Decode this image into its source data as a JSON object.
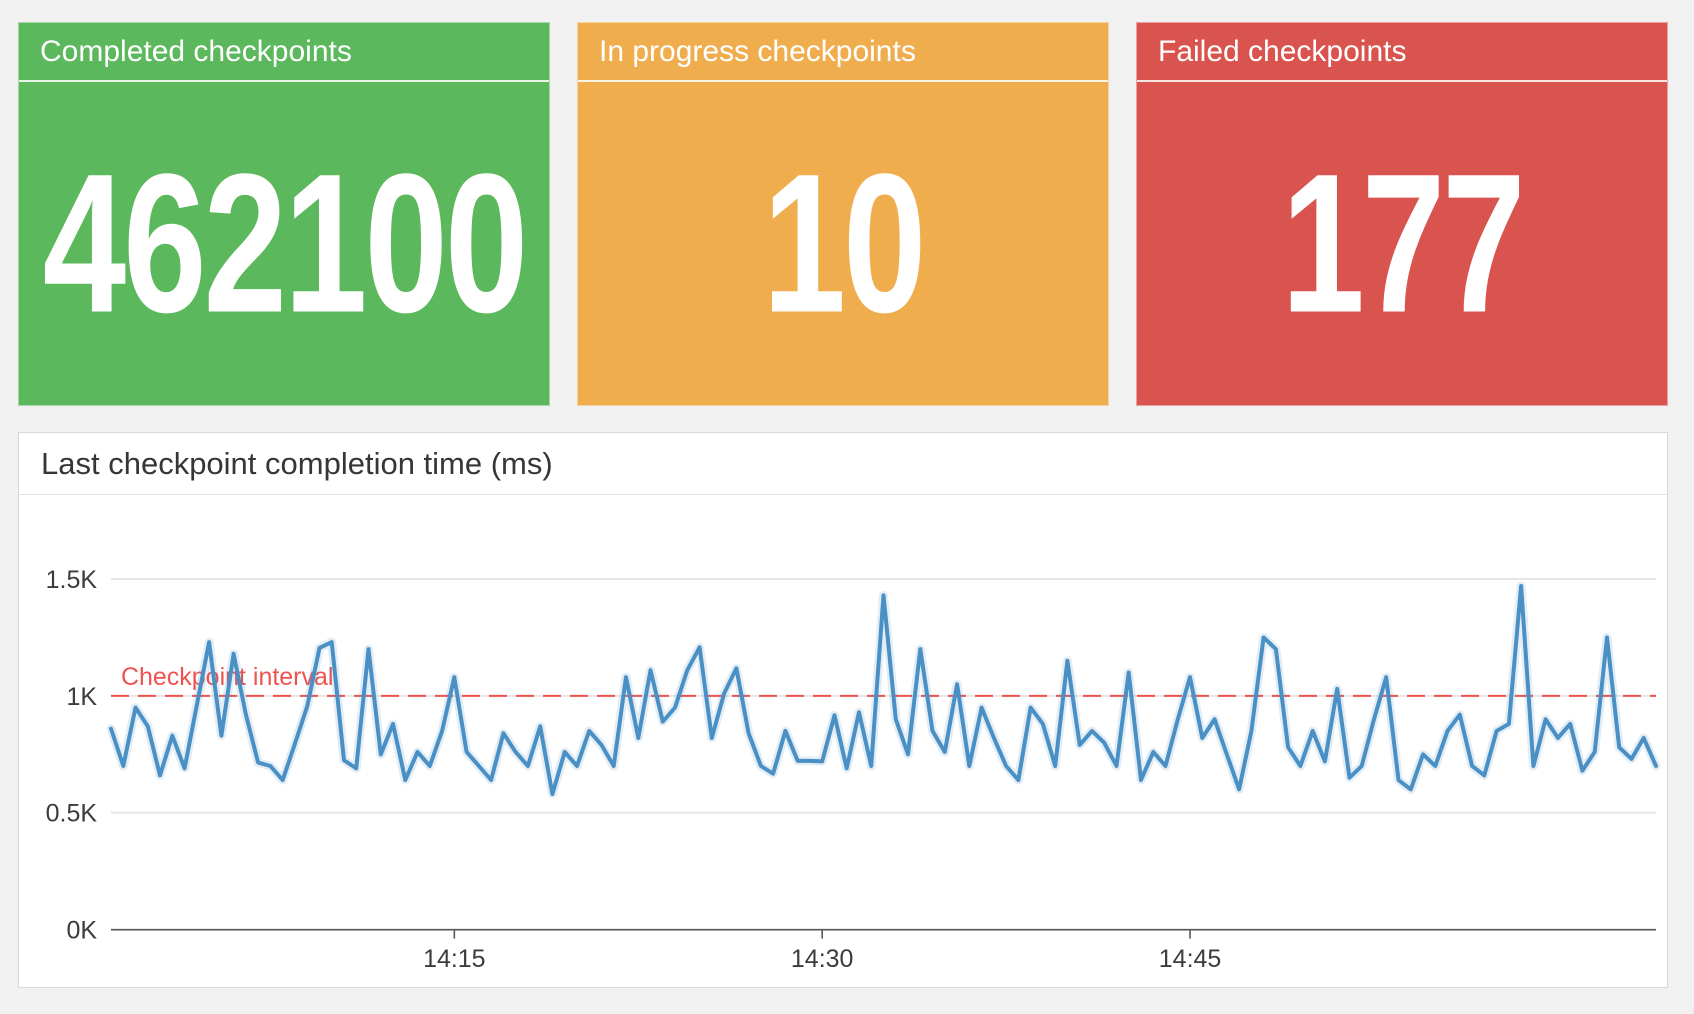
{
  "stats": [
    {
      "title": "Completed checkpoints",
      "value": "462100",
      "color": "#5cb85c"
    },
    {
      "title": "In progress checkpoints",
      "value": "10",
      "color": "#f0ad4e"
    },
    {
      "title": "Failed checkpoints",
      "value": "177",
      "color": "#d9534f"
    }
  ],
  "chart": {
    "title": "Last checkpoint completion time (ms)"
  },
  "chart_data": {
    "type": "line",
    "title": "Last checkpoint completion time (ms)",
    "xlabel": "",
    "ylabel": "",
    "ylim": [
      0,
      1792
    ],
    "grid": true,
    "legend": false,
    "x_start": "14:01:00",
    "x_interval_seconds": 30,
    "x_ticks": [
      {
        "label": "14:15",
        "index": 28
      },
      {
        "label": "14:30",
        "index": 58
      },
      {
        "label": "14:45",
        "index": 88
      }
    ],
    "y_ticks": [
      {
        "label": "0K",
        "value": 0
      },
      {
        "label": "0.5K",
        "value": 500
      },
      {
        "label": "1K",
        "value": 1000
      },
      {
        "label": "1.5K",
        "value": 1500
      }
    ],
    "threshold": {
      "label": "Checkpoint interval",
      "value": 1000,
      "color": "#ee534f",
      "style": "dashed"
    },
    "series": [
      {
        "name": "Last checkpoint completion time (ms)",
        "color": "#4a90c4",
        "values": [
          860,
          700,
          950,
          870,
          660,
          830,
          690,
          960,
          1230,
          830,
          1180,
          920,
          715,
          700,
          640,
          795,
          955,
          1205,
          1230,
          725,
          690,
          1200,
          750,
          880,
          640,
          760,
          700,
          850,
          1080,
          760,
          700,
          640,
          840,
          760,
          700,
          870,
          580,
          760,
          700,
          850,
          790,
          700,
          1080,
          820,
          1110,
          890,
          950,
          1110,
          1208,
          820,
          1010,
          1118,
          840,
          700,
          667,
          850,
          722,
          722,
          720,
          917,
          690,
          930,
          700,
          1430,
          900,
          750,
          1200,
          850,
          760,
          1050,
          700,
          950,
          820,
          700,
          640,
          950,
          880,
          700,
          1150,
          790,
          850,
          800,
          700,
          1100,
          640,
          760,
          700,
          900,
          1080,
          820,
          900,
          750,
          600,
          850,
          1250,
          1200,
          780,
          700,
          850,
          720,
          1030,
          650,
          700,
          900,
          1080,
          640,
          600,
          750,
          700,
          850,
          920,
          700,
          660,
          850,
          880,
          1470,
          700,
          900,
          820,
          880,
          680,
          760,
          1250,
          780,
          730,
          820,
          700
        ]
      }
    ]
  }
}
